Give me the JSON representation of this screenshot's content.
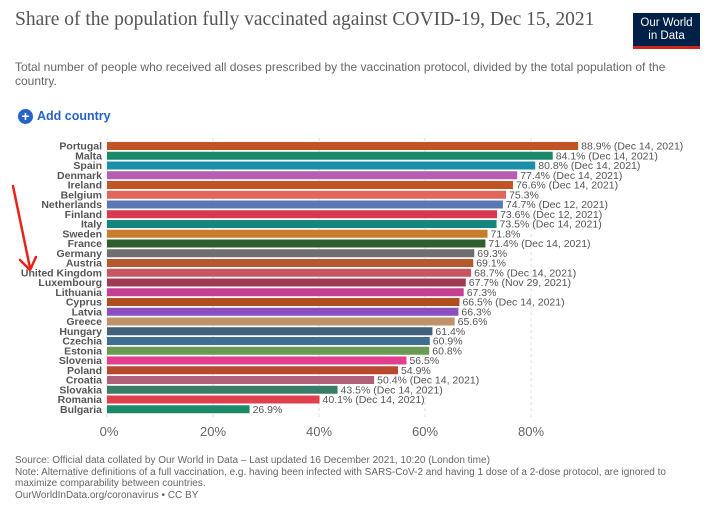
{
  "header": {
    "title": "Share of the population fully vaccinated against COVID-19, Dec 15, 2021",
    "subtitle": "Total number of people who received all doses prescribed by the vaccination protocol, divided by the total population of the country.",
    "logo_line1": "Our World",
    "logo_line2": "in Data"
  },
  "controls": {
    "add_country_label": "Add country",
    "add_icon": "plus-circle-icon"
  },
  "chart_data": {
    "type": "bar",
    "orientation": "horizontal",
    "xlim": [
      0,
      90
    ],
    "x_ticks": [
      "0%",
      "20%",
      "40%",
      "60%",
      "80%"
    ],
    "x_tick_values": [
      0,
      20,
      40,
      60,
      80
    ],
    "grid": true,
    "categories": [
      "Portugal",
      "Malta",
      "Spain",
      "Denmark",
      "Ireland",
      "Belgium",
      "Netherlands",
      "Finland",
      "Italy",
      "Sweden",
      "France",
      "Germany",
      "Austria",
      "United Kingdom",
      "Luxembourg",
      "Lithuania",
      "Cyprus",
      "Latvia",
      "Greece",
      "Hungary",
      "Czechia",
      "Estonia",
      "Slovenia",
      "Poland",
      "Croatia",
      "Slovakia",
      "Romania",
      "Bulgaria"
    ],
    "values": [
      88.9,
      84.1,
      80.8,
      77.4,
      76.6,
      75.3,
      74.7,
      73.6,
      73.5,
      71.8,
      71.4,
      69.3,
      69.1,
      68.7,
      67.7,
      67.3,
      66.5,
      66.3,
      65.6,
      61.4,
      60.9,
      60.8,
      56.5,
      54.9,
      50.4,
      43.5,
      40.1,
      26.9
    ],
    "data_labels": [
      "88.9% (Dec 14, 2021)",
      "84.1% (Dec 14, 2021)",
      "80.8% (Dec 14, 2021)",
      "77.4% (Dec 14, 2021)",
      "76.6% (Dec 14, 2021)",
      "75.3%",
      "74.7% (Dec 12, 2021)",
      "73.6% (Dec 12, 2021)",
      "73.5% (Dec 14, 2021)",
      "71.8%",
      "71.4% (Dec 14, 2021)",
      "69.3%",
      "69.1%",
      "68.7% (Dec 14, 2021)",
      "67.7% (Nov 29, 2021)",
      "67.3%",
      "66.5% (Dec 14, 2021)",
      "66.3%",
      "65.6%",
      "61.4%",
      "60.9%",
      "60.8%",
      "56.5%",
      "54.9%",
      "50.4% (Dec 14, 2021)",
      "43.5% (Dec 14, 2021)",
      "40.1% (Dec 14, 2021)",
      "26.9%"
    ],
    "colors": [
      "#c15324",
      "#1b8a6b",
      "#1a8fa8",
      "#b45fb1",
      "#c15324",
      "#e0655a",
      "#5a78b3",
      "#d7384f",
      "#15857f",
      "#c77d2a",
      "#2f5e2e",
      "#6f6f6f",
      "#b5592c",
      "#c95563",
      "#a03a52",
      "#c43f8f",
      "#b14e1e",
      "#8c4fbf",
      "#c0926a",
      "#43627a",
      "#3f6e91",
      "#6b9a54",
      "#e23d8e",
      "#b8492f",
      "#b0607a",
      "#3a7d66",
      "#e0404d",
      "#1b8a6b"
    ]
  },
  "footer": {
    "source": "Source: Official data collated by Our World in Data – Last updated 16 December 2021, 10:20 (London time)",
    "note": "Note: Alternative definitions of a full vaccination, e.g. having been infected with SARS-CoV-2 and having 1 dose of a 2-dose protocol, are ignored to maximize comparability between countries.",
    "url": "OurWorldInData.org/coronavirus • CC BY"
  },
  "annotation": {
    "arrow_color": "#e8231c"
  }
}
